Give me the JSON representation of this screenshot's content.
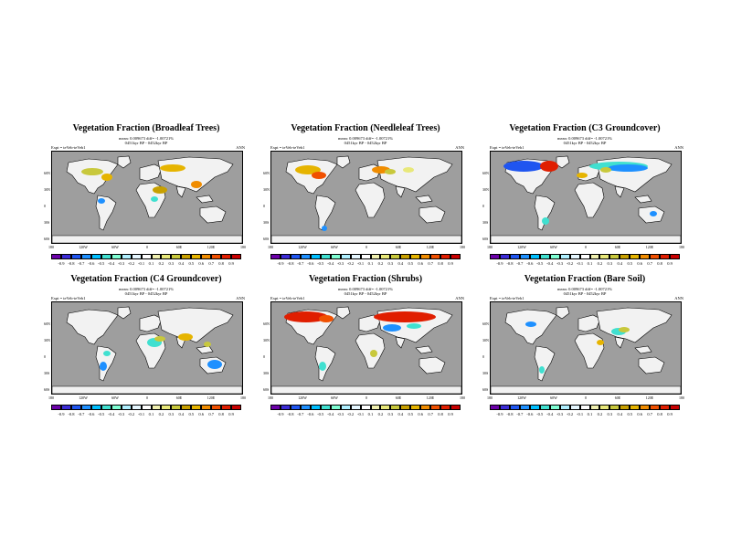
{
  "season": "ANN",
  "lat_labels": [
    "60N",
    "30N",
    "0",
    "30S",
    "60S"
  ],
  "lon_labels": [
    "180",
    "120W",
    "60W",
    "0",
    "60E",
    "120E",
    "180"
  ],
  "colorbar": {
    "labels": [
      "-0.9",
      "-0.8",
      "-0.7",
      "-0.6",
      "-0.5",
      "-0.4",
      "-0.3",
      "-0.2",
      "-0.1",
      "0.1",
      "0.2",
      "0.3",
      "0.4",
      "0.5",
      "0.6",
      "0.7",
      "0.8",
      "0.9"
    ],
    "colors": [
      "#6a00a8",
      "#3b2bd6",
      "#1f55f0",
      "#1e90ff",
      "#00bfff",
      "#40e0d0",
      "#7fffd4",
      "#b0f0ff",
      "#e6f7ff",
      "#ffffff",
      "#f0f0b0",
      "#e8e87a",
      "#c8c83c",
      "#c8a000",
      "#e6b400",
      "#f08c00",
      "#f05000",
      "#e01e00",
      "#c80000"
    ]
  },
  "panels": [
    {
      "title": "Vegetation Fraction (Broadleaf Trees)",
      "stats": "mean: 0.009673 diff= -1.00721%",
      "expt": "Expt = teVeb-teVeb1",
      "period": "0451kyr BP - 0452kyr BP"
    },
    {
      "title": "Vegetation Fraction (Needleleaf Trees)",
      "stats": "mean: 0.009673 diff= -1.00721%",
      "expt": "Expt = teVeb-teVeb1",
      "period": "0451kyr BP - 0452kyr BP"
    },
    {
      "title": "Vegetation Fraction (C3 Groundcover)",
      "stats": "mean: 0.009673 diff= -1.00721%",
      "expt": "Expt = teVeb-teVeb1",
      "period": "0451kyr BP - 0452kyr BP"
    },
    {
      "title": "Vegetation Fraction (C4 Groundcover)",
      "stats": "mean: 0.009673 diff= -1.00721%",
      "expt": "Expt = teVeb-teVeb1",
      "period": "0451kyr BP - 0452kyr BP"
    },
    {
      "title": "Vegetation Fraction (Shrubs)",
      "stats": "mean: 0.009673 diff= -1.00721%",
      "expt": "Expt = teVeb-teVeb1",
      "period": "0451kyr BP - 0452kyr BP"
    },
    {
      "title": "Vegetation Fraction (Bare Soil)",
      "stats": "mean: 0.009673 diff= -1.00721%",
      "expt": "Expt = teVeb-teVeb1",
      "period": "0451kyr BP - 0452kyr BP"
    }
  ]
}
